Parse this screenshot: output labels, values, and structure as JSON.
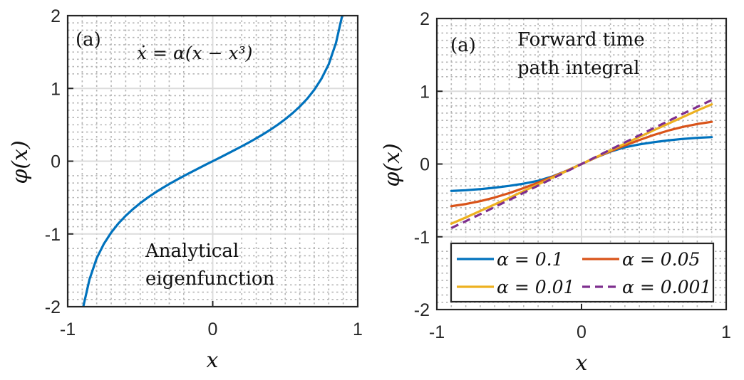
{
  "colors": {
    "blue": "#0072BD",
    "orange": "#D95319",
    "yellow": "#EDB120",
    "purple": "#7E2F8E"
  },
  "chart_data": [
    {
      "type": "line",
      "panel_tag": "(a)",
      "equation": "ẋ = α(x − x³)",
      "annotation": [
        "Analytical",
        "eigenfunction"
      ],
      "xlabel": "x",
      "ylabel": "φ(x)",
      "xlim": [
        -1,
        1
      ],
      "ylim": [
        -2,
        2
      ],
      "xticks": [
        "-1",
        "0",
        "1"
      ],
      "yticks": [
        "-2",
        "-1",
        "0",
        "1",
        "2"
      ],
      "grid": "on",
      "series": [
        {
          "color": "#0072BD",
          "style": "solid",
          "x": [
            -0.9,
            -0.85,
            -0.8,
            -0.75,
            -0.7,
            -0.65,
            -0.6,
            -0.55,
            -0.5,
            -0.45,
            -0.4,
            -0.35,
            -0.3,
            -0.25,
            -0.2,
            -0.15,
            -0.1,
            -0.05,
            0,
            0.05,
            0.1,
            0.15,
            0.2,
            0.25,
            0.3,
            0.35,
            0.4,
            0.45,
            0.5,
            0.55,
            0.6,
            0.65,
            0.7,
            0.75,
            0.8,
            0.85,
            0.9
          ],
          "y": [
            -2.065,
            -1.626,
            -1.333,
            -1.134,
            -0.98,
            -0.855,
            -0.75,
            -0.659,
            -0.577,
            -0.503,
            -0.436,
            -0.373,
            -0.314,
            -0.258,
            -0.204,
            -0.152,
            -0.101,
            -0.05,
            0,
            0.05,
            0.101,
            0.152,
            0.204,
            0.258,
            0.314,
            0.373,
            0.436,
            0.503,
            0.577,
            0.659,
            0.75,
            0.855,
            0.98,
            1.134,
            1.333,
            1.626,
            2.065
          ]
        }
      ]
    },
    {
      "type": "line",
      "panel_tag": "(a)",
      "annotation": [
        "Forward time",
        "path integral"
      ],
      "xlabel": "x",
      "ylabel": "φ(x)",
      "xlim": [
        -1,
        1
      ],
      "ylim": [
        -2,
        2
      ],
      "xticks": [
        "-1",
        "0",
        "1"
      ],
      "yticks": [
        "-2",
        "-1",
        "0",
        "1",
        "2"
      ],
      "grid": "on",
      "legend_position": "bottom",
      "series": [
        {
          "name": "α = 0.1",
          "color": "#0072BD",
          "style": "solid",
          "x": [
            -0.9,
            -0.8,
            -0.7,
            -0.6,
            -0.5,
            -0.4,
            -0.3,
            -0.2,
            -0.1,
            0,
            0.1,
            0.2,
            0.3,
            0.4,
            0.5,
            0.6,
            0.7,
            0.8,
            0.9
          ],
          "y": [
            -0.37,
            -0.36,
            -0.345,
            -0.325,
            -0.3,
            -0.27,
            -0.23,
            -0.17,
            -0.09,
            0,
            0.09,
            0.17,
            0.23,
            0.27,
            0.3,
            0.325,
            0.345,
            0.36,
            0.37
          ]
        },
        {
          "name": "α = 0.05",
          "color": "#D95319",
          "style": "solid",
          "x": [
            -0.9,
            -0.8,
            -0.7,
            -0.6,
            -0.5,
            -0.4,
            -0.3,
            -0.2,
            -0.1,
            0,
            0.1,
            0.2,
            0.3,
            0.4,
            0.5,
            0.6,
            0.7,
            0.8,
            0.9
          ],
          "y": [
            -0.58,
            -0.55,
            -0.51,
            -0.46,
            -0.4,
            -0.33,
            -0.255,
            -0.175,
            -0.09,
            0,
            0.09,
            0.175,
            0.255,
            0.33,
            0.4,
            0.46,
            0.51,
            0.55,
            0.58
          ]
        },
        {
          "name": "α = 0.01",
          "color": "#EDB120",
          "style": "solid",
          "x": [
            -0.9,
            -0.8,
            -0.7,
            -0.6,
            -0.5,
            -0.4,
            -0.3,
            -0.2,
            -0.1,
            0,
            0.1,
            0.2,
            0.3,
            0.4,
            0.5,
            0.6,
            0.7,
            0.8,
            0.9
          ],
          "y": [
            -0.82,
            -0.735,
            -0.645,
            -0.555,
            -0.465,
            -0.372,
            -0.28,
            -0.186,
            -0.093,
            0,
            0.093,
            0.186,
            0.28,
            0.372,
            0.465,
            0.555,
            0.645,
            0.735,
            0.82
          ]
        },
        {
          "name": "α = 0.001",
          "color": "#7E2F8E",
          "style": "dashed",
          "x": [
            -0.9,
            -0.8,
            -0.7,
            -0.6,
            -0.5,
            -0.4,
            -0.3,
            -0.2,
            -0.1,
            0,
            0.1,
            0.2,
            0.3,
            0.4,
            0.5,
            0.6,
            0.7,
            0.8,
            0.9
          ],
          "y": [
            -0.88,
            -0.785,
            -0.69,
            -0.59,
            -0.495,
            -0.395,
            -0.297,
            -0.198,
            -0.099,
            0,
            0.099,
            0.198,
            0.297,
            0.395,
            0.495,
            0.59,
            0.69,
            0.785,
            0.88
          ]
        }
      ]
    }
  ]
}
